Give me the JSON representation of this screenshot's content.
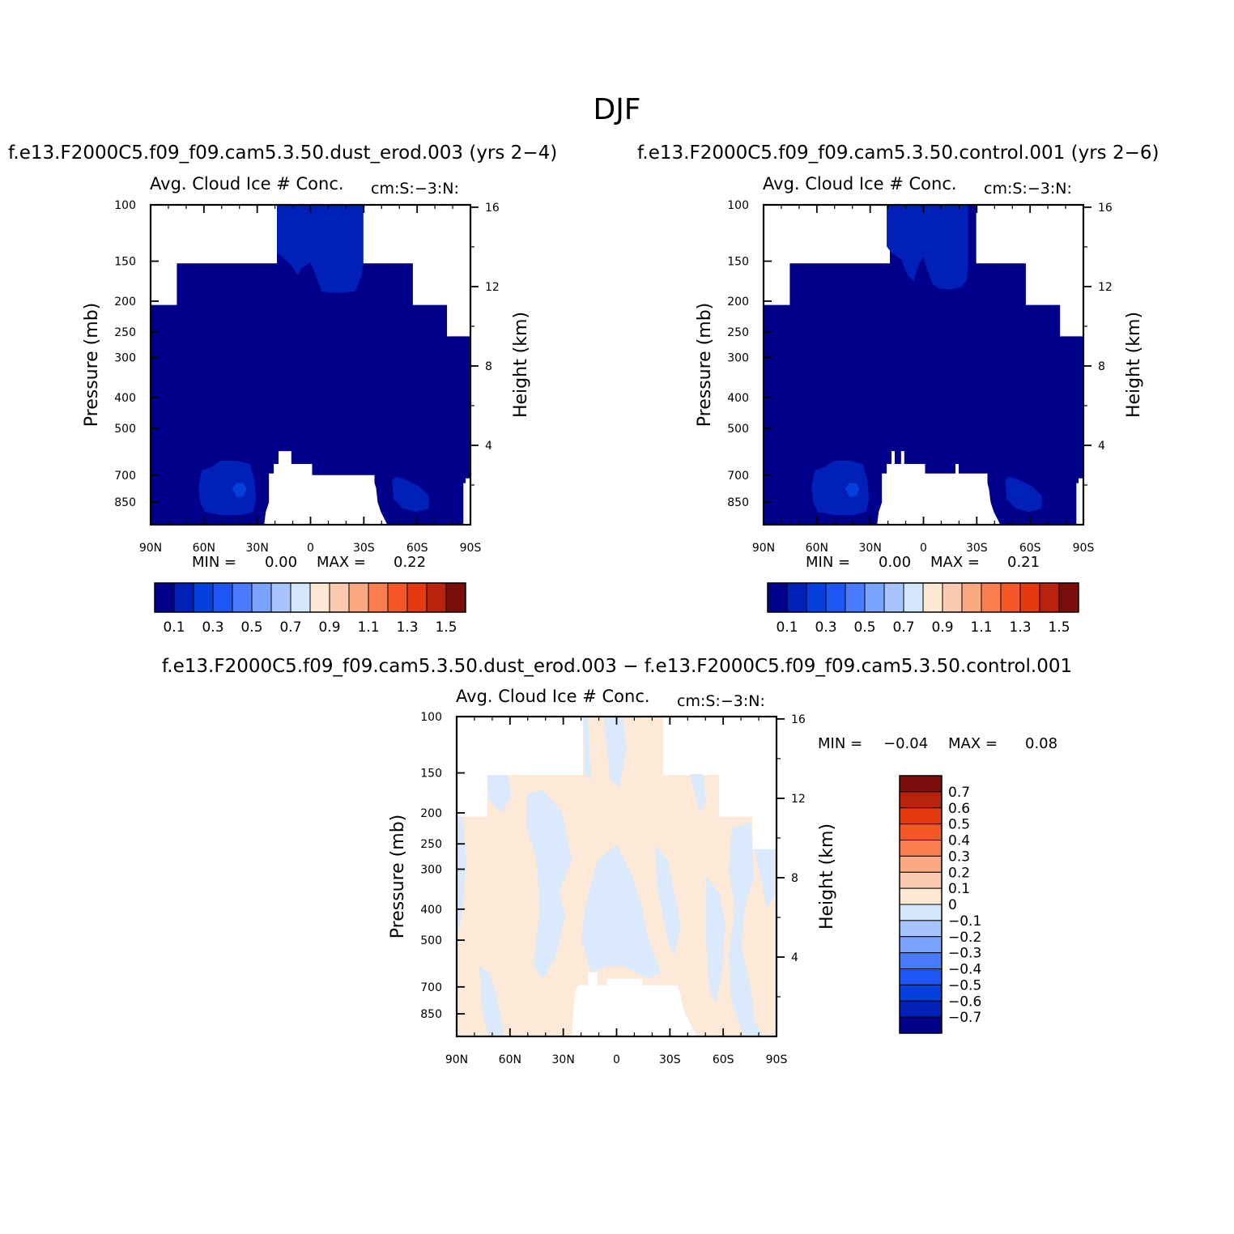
{
  "figure": {
    "title": "DJF",
    "diff_case_title": "f.e13.F2000C5.f09_f09.cam5.3.50.dust_erod.003 − f.e13.F2000C5.f09_f09.cam5.3.50.control.001"
  },
  "colors": {
    "abs_fill_levels": [
      "#00008b",
      "#0020b8",
      "#0540dd",
      "#1e56f5",
      "#4a7bff",
      "#7aa3ff",
      "#a8c4ff",
      "#d3e6fc",
      "#fde8d4",
      "#fccab0",
      "#fba983",
      "#fa7e4f",
      "#f55727",
      "#e43a0e",
      "#b9230d",
      "#7c0d0d"
    ],
    "diff_fill_levels": [
      "#00008b",
      "#0020b8",
      "#0540dd",
      "#1e56f5",
      "#4a7bff",
      "#7aa3ff",
      "#a8c4ff",
      "#d3e6fc",
      "#fde8d4",
      "#fccab0",
      "#fba983",
      "#fa7e4f",
      "#f55727",
      "#e43a0e",
      "#b9230d",
      "#7c0d0d"
    ],
    "diff_neg_small": "#daeafc",
    "diff_pos_small": "#fde9d8"
  },
  "chart_data": [
    {
      "type": "heatmap",
      "name": "dust_erod",
      "case_title": "f.e13.F2000C5.f09_f09.cam5.3.50.dust_erod.003 (yrs 2−4)",
      "title": "Avg. Cloud Ice # Conc.",
      "units": "cm:S:−3:N:",
      "ylabel": "Pressure (mb)",
      "y2label": "Height (km)",
      "x_ticks": [
        "90N",
        "60N",
        "30N",
        "0",
        "30S",
        "60S",
        "90S"
      ],
      "p_ticks": [
        "100",
        "150",
        "200",
        "250",
        "300",
        "400",
        "500",
        "700",
        "850"
      ],
      "p_tick_values": [
        100,
        150,
        200,
        250,
        300,
        400,
        500,
        700,
        850
      ],
      "height_ticks": [
        "16",
        "12",
        "8",
        "4"
      ],
      "height_tick_values": [
        16,
        12,
        8,
        4
      ],
      "ylim": [
        1000,
        100
      ],
      "xlim": [
        90,
        -90
      ],
      "stats": {
        "min_label": "MIN =",
        "min": "0.00",
        "max_label": "MAX =",
        "max": "0.22"
      },
      "colorbar": {
        "labels": [
          "0.1",
          "0.3",
          "0.5",
          "0.7",
          "0.9",
          "1.1",
          "1.3",
          "1.5"
        ],
        "levels": [
          0.1,
          0.2,
          0.3,
          0.4,
          0.5,
          0.6,
          0.7,
          0.8,
          0.9,
          1.0,
          1.1,
          1.2,
          1.3,
          1.4,
          1.5
        ]
      }
    },
    {
      "type": "heatmap",
      "name": "control",
      "case_title": "f.e13.F2000C5.f09_f09.cam5.3.50.control.001 (yrs 2−6)",
      "title": "Avg. Cloud Ice # Conc.",
      "units": "cm:S:−3:N:",
      "ylabel": "Pressure (mb)",
      "y2label": "Height (km)",
      "x_ticks": [
        "90N",
        "60N",
        "30N",
        "0",
        "30S",
        "60S",
        "90S"
      ],
      "p_ticks": [
        "100",
        "150",
        "200",
        "250",
        "300",
        "400",
        "500",
        "700",
        "850"
      ],
      "p_tick_values": [
        100,
        150,
        200,
        250,
        300,
        400,
        500,
        700,
        850
      ],
      "height_ticks": [
        "16",
        "12",
        "8",
        "4"
      ],
      "height_tick_values": [
        16,
        12,
        8,
        4
      ],
      "ylim": [
        1000,
        100
      ],
      "xlim": [
        90,
        -90
      ],
      "stats": {
        "min_label": "MIN =",
        "min": "0.00",
        "max_label": "MAX =",
        "max": "0.21"
      },
      "colorbar": {
        "labels": [
          "0.1",
          "0.3",
          "0.5",
          "0.7",
          "0.9",
          "1.1",
          "1.3",
          "1.5"
        ],
        "levels": [
          0.1,
          0.2,
          0.3,
          0.4,
          0.5,
          0.6,
          0.7,
          0.8,
          0.9,
          1.0,
          1.1,
          1.2,
          1.3,
          1.4,
          1.5
        ]
      }
    },
    {
      "type": "heatmap",
      "name": "difference",
      "title": "Avg. Cloud Ice # Conc.",
      "units": "cm:S:−3:N:",
      "ylabel": "Pressure (mb)",
      "y2label": "Height (km)",
      "x_ticks": [
        "90N",
        "60N",
        "30N",
        "0",
        "30S",
        "60S",
        "90S"
      ],
      "p_ticks": [
        "100",
        "150",
        "200",
        "250",
        "300",
        "400",
        "500",
        "700",
        "850"
      ],
      "p_tick_values": [
        100,
        150,
        200,
        250,
        300,
        400,
        500,
        700,
        850
      ],
      "height_ticks": [
        "16",
        "12",
        "8",
        "4"
      ],
      "height_tick_values": [
        16,
        12,
        8,
        4
      ],
      "ylim": [
        1000,
        100
      ],
      "xlim": [
        90,
        -90
      ],
      "stats": {
        "min_label": "MIN =",
        "min": "−0.04",
        "max_label": "MAX =",
        "max": "0.08"
      },
      "colorbar": {
        "labels": [
          "0.7",
          "0.6",
          "0.5",
          "0.4",
          "0.3",
          "0.2",
          "0.1",
          "0",
          "−0.1",
          "−0.2",
          "−0.3",
          "−0.4",
          "−0.5",
          "−0.6",
          "−0.7"
        ],
        "levels": [
          0.7,
          0.6,
          0.5,
          0.4,
          0.3,
          0.2,
          0.1,
          0,
          -0.1,
          -0.2,
          -0.3,
          -0.4,
          -0.5,
          -0.6,
          -0.7
        ]
      }
    }
  ]
}
